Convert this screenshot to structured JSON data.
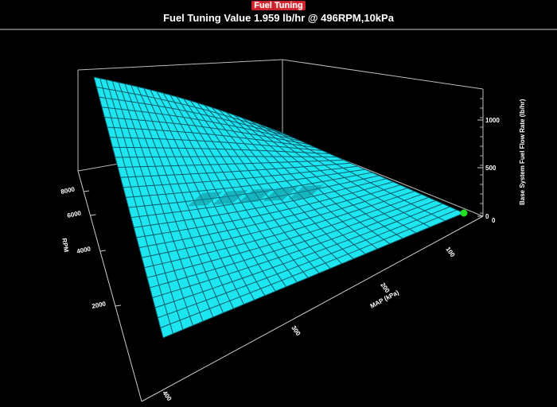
{
  "header": {
    "app_title": "Fuel Tuning",
    "value_line": "Fuel Tuning Value 1.959 lb/hr @ 496RPM,10kPa"
  },
  "chart_data": {
    "type": "surface",
    "title": "Fuel Tuning Value 1.959 lb/hr @ 496RPM,10kPa",
    "x_axis": {
      "label": "MAP (kPa)",
      "ticks": [
        "100",
        "200",
        "300",
        "400"
      ],
      "range": [
        10,
        400
      ]
    },
    "y_axis": {
      "label": "RPM",
      "ticks": [
        "2000",
        "4000",
        "6000",
        "8000"
      ],
      "range": [
        496,
        9000
      ]
    },
    "z_axis": {
      "label": "Base System Fuel Flow Rate (lb/hr)",
      "ticks": [
        "0",
        "500",
        "1000"
      ],
      "range": [
        0,
        1300
      ]
    },
    "z_floor_label": "0",
    "selected_point": {
      "rpm": 496,
      "map": 10,
      "value": 1.959
    },
    "colors": {
      "surface": "#1ee6f0",
      "grid": "#0b5b6b",
      "marker": "#22dd22",
      "axes": "#cccccc"
    }
  }
}
